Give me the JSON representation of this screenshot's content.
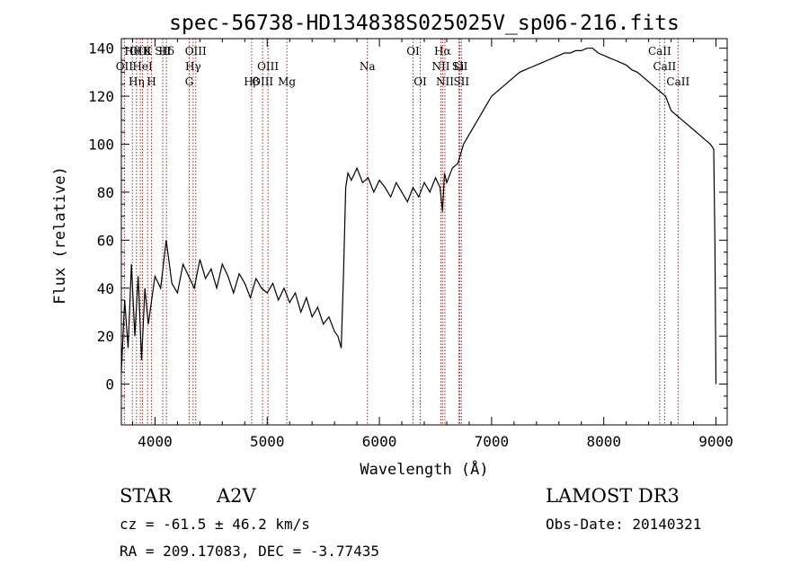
{
  "chart_data": {
    "type": "line",
    "title": "spec-56738-HD134838S025025V_sp06-216.fits",
    "xlabel": "Wavelength (Å)",
    "ylabel": "Flux (relative)",
    "xlim": [
      3700,
      9100
    ],
    "ylim": [
      -17,
      144
    ],
    "xticks": [
      4000,
      5000,
      6000,
      7000,
      8000,
      9000
    ],
    "yticks": [
      0,
      20,
      40,
      60,
      80,
      100,
      120,
      140
    ],
    "line_color": "#000000",
    "marker_color": "#b22222",
    "series": [
      {
        "x": [
          3700,
          3730,
          3760,
          3790,
          3820,
          3850,
          3880,
          3910,
          3940,
          3970,
          4000,
          4050,
          4100,
          4150,
          4200,
          4250,
          4300,
          4350,
          4400,
          4450,
          4500,
          4550,
          4600,
          4650,
          4700,
          4750,
          4800,
          4850,
          4900,
          4950,
          5000,
          5050,
          5100,
          5150,
          5200,
          5250,
          5300,
          5350,
          5400,
          5450,
          5500,
          5550,
          5600,
          5630,
          5660,
          5680,
          5700,
          5720,
          5750,
          5800,
          5850,
          5900,
          5950,
          6000,
          6050,
          6100,
          6150,
          6200,
          6250,
          6300,
          6350,
          6400,
          6450,
          6500,
          6540,
          6563,
          6580,
          6600,
          6650,
          6700,
          6750,
          6800,
          6850,
          6900,
          6950,
          7000,
          7050,
          7100,
          7150,
          7200,
          7250,
          7300,
          7350,
          7400,
          7450,
          7500,
          7550,
          7600,
          7650,
          7700,
          7750,
          7800,
          7850,
          7900,
          7950,
          8000,
          8050,
          8100,
          8150,
          8200,
          8250,
          8300,
          8350,
          8400,
          8450,
          8500,
          8550,
          8600,
          8650,
          8700,
          8750,
          8800,
          8850,
          8900,
          8950,
          8980,
          8990,
          9000
        ],
        "y": [
          5,
          35,
          15,
          50,
          20,
          45,
          10,
          40,
          25,
          35,
          45,
          40,
          60,
          42,
          38,
          50,
          45,
          40,
          52,
          44,
          48,
          40,
          50,
          45,
          38,
          46,
          42,
          36,
          44,
          40,
          38,
          42,
          35,
          40,
          34,
          38,
          30,
          36,
          28,
          32,
          25,
          28,
          22,
          20,
          15,
          45,
          82,
          88,
          85,
          90,
          84,
          86,
          80,
          85,
          82,
          78,
          84,
          80,
          76,
          82,
          78,
          84,
          80,
          86,
          82,
          72,
          88,
          84,
          90,
          92,
          100,
          104,
          108,
          112,
          116,
          120,
          122,
          124,
          126,
          128,
          130,
          131,
          132,
          133,
          134,
          135,
          136,
          137,
          138,
          138,
          139,
          139,
          140,
          140,
          138,
          137,
          136,
          135,
          134,
          133,
          131,
          130,
          128,
          126,
          124,
          122,
          120,
          114,
          112,
          110,
          108,
          106,
          104,
          102,
          100,
          98,
          60,
          0
        ]
      }
    ],
    "lines": [
      {
        "name": "Hθ",
        "wl": 3798
      },
      {
        "name": "OII",
        "wl": 3727
      },
      {
        "name": "OIII",
        "wl": 3869
      },
      {
        "name": "K",
        "wl": 3934
      },
      {
        "name": "H",
        "wl": 3969
      },
      {
        "name": "HeI",
        "wl": 3889
      },
      {
        "name": "Hη",
        "wl": 3835
      },
      {
        "name": "Hδ",
        "wl": 4102
      },
      {
        "name": "SII",
        "wl": 4069
      },
      {
        "name": "OIII",
        "wl": 4363
      },
      {
        "name": "Hγ",
        "wl": 4340
      },
      {
        "name": "G",
        "wl": 4305
      },
      {
        "name": "OIII",
        "wl": 5007
      },
      {
        "name": "OIII",
        "wl": 4959
      },
      {
        "name": "Hβ",
        "wl": 4861
      },
      {
        "name": "Mg",
        "wl": 5175
      },
      {
        "name": "Na",
        "wl": 5893
      },
      {
        "name": "OI",
        "wl": 6300
      },
      {
        "name": "OI",
        "wl": 6364
      },
      {
        "name": "Hα",
        "wl": 6563
      },
      {
        "name": "NII",
        "wl": 6548
      },
      {
        "name": "NII",
        "wl": 6584
      },
      {
        "name": "SII",
        "wl": 6717
      },
      {
        "name": "SII",
        "wl": 6731
      },
      {
        "name": "Li",
        "wl": 6708
      },
      {
        "name": "CaII",
        "wl": 8498
      },
      {
        "name": "CaII",
        "wl": 8542
      },
      {
        "name": "CaII",
        "wl": 8662
      }
    ],
    "line_label_rows": [
      [
        "Hθ",
        "K",
        "Hδ",
        "OIII",
        "OIII",
        "OI",
        "Hα",
        "SII",
        "CaII"
      ],
      [
        "OII",
        "HeI",
        "SII",
        "Hγ",
        "OIII",
        "Na",
        "NII",
        "Li",
        "CaII"
      ],
      [
        "OIII",
        "Hη",
        "H",
        "G",
        "Hβ",
        "Mg",
        "OI",
        "NII",
        "SII",
        "CaII"
      ]
    ]
  },
  "info": {
    "obj_type": "STAR",
    "subclass": "A2V",
    "survey": "LAMOST DR3",
    "cz": "cz = -61.5 ± 46.2 km/s",
    "obs_date": "Obs-Date: 20140321",
    "coords": "RA = 209.17083, DEC =  -3.77435"
  }
}
